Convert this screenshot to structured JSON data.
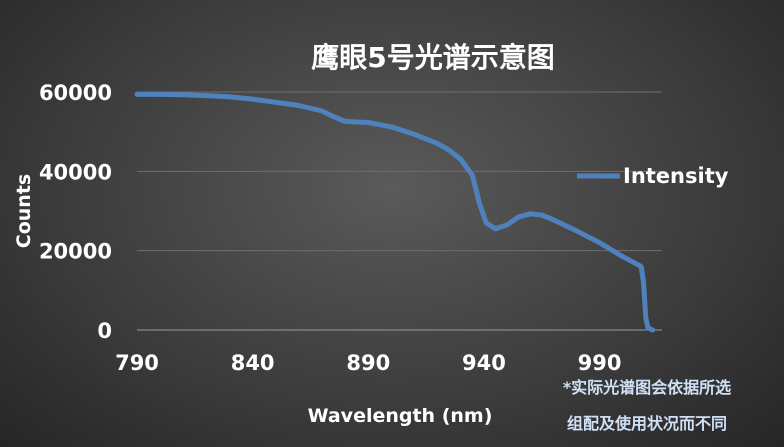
{
  "chart_data": {
    "type": "line",
    "title": "鹰眼5号光谱示意图",
    "xlabel": "Wavelength (nm)",
    "ylabel": "Counts",
    "xlim": [
      790,
      1017
    ],
    "ylim": [
      0,
      60000
    ],
    "x_ticks": [
      790,
      840,
      890,
      940,
      990
    ],
    "y_ticks": [
      0,
      20000,
      40000,
      60000
    ],
    "grid": true,
    "legend_position": "right",
    "series": [
      {
        "name": "Intensity",
        "color": "#4f81bd",
        "points": [
          [
            790,
            59400
          ],
          [
            800,
            59400
          ],
          [
            810,
            59300
          ],
          [
            820,
            59100
          ],
          [
            830,
            58800
          ],
          [
            840,
            58200
          ],
          [
            850,
            57400
          ],
          [
            860,
            56600
          ],
          [
            870,
            55200
          ],
          [
            875,
            53800
          ],
          [
            880,
            52600
          ],
          [
            890,
            52300
          ],
          [
            900,
            51200
          ],
          [
            910,
            49300
          ],
          [
            920,
            47000
          ],
          [
            925,
            45300
          ],
          [
            930,
            43000
          ],
          [
            935,
            39000
          ],
          [
            938,
            32000
          ],
          [
            941,
            27000
          ],
          [
            945,
            25500
          ],
          [
            950,
            26500
          ],
          [
            955,
            28500
          ],
          [
            960,
            29300
          ],
          [
            965,
            29000
          ],
          [
            970,
            27800
          ],
          [
            980,
            25000
          ],
          [
            990,
            22000
          ],
          [
            1000,
            18500
          ],
          [
            1008,
            16000
          ],
          [
            1009,
            12000
          ],
          [
            1010,
            3000
          ],
          [
            1011,
            500
          ],
          [
            1013,
            0
          ]
        ]
      }
    ]
  },
  "footnote": {
    "line1": "*实际光谱图会依据所选",
    "line2": "组配及使用状况而不同"
  }
}
